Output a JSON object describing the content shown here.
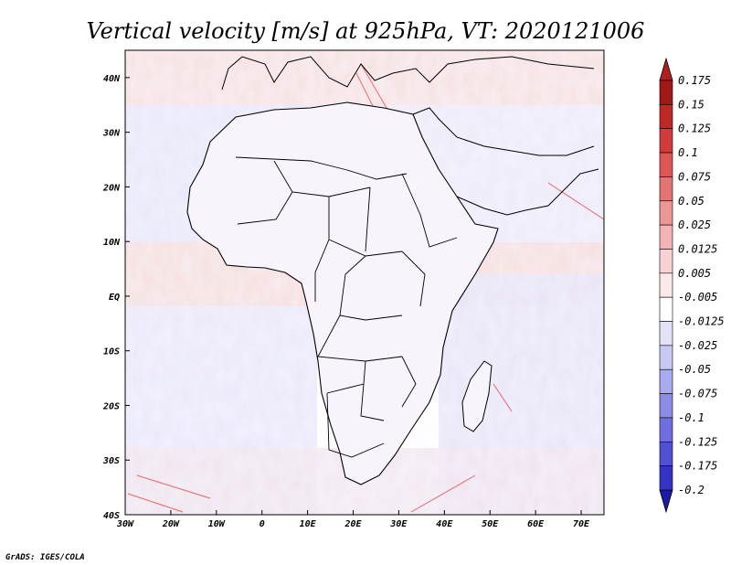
{
  "title": "Vertical velocity [m/s] at 925hPa, VT: 2020121006",
  "credit": "GrADS: IGES/COLA",
  "map": {
    "lon_range": [
      -30,
      75
    ],
    "lat_range": [
      -40,
      45
    ],
    "x_ticks": [
      {
        "value": -30,
        "label": "30W"
      },
      {
        "value": -20,
        "label": "20W"
      },
      {
        "value": -10,
        "label": "10W"
      },
      {
        "value": 0,
        "label": "0"
      },
      {
        "value": 10,
        "label": "10E"
      },
      {
        "value": 20,
        "label": "20E"
      },
      {
        "value": 30,
        "label": "30E"
      },
      {
        "value": 40,
        "label": "40E"
      },
      {
        "value": 50,
        "label": "50E"
      },
      {
        "value": 60,
        "label": "60E"
      },
      {
        "value": 70,
        "label": "70E"
      }
    ],
    "y_ticks": [
      {
        "value": 40,
        "label": "40N"
      },
      {
        "value": 30,
        "label": "30N"
      },
      {
        "value": 20,
        "label": "20N"
      },
      {
        "value": 10,
        "label": "10N"
      },
      {
        "value": 0,
        "label": "EQ"
      },
      {
        "value": -10,
        "label": "10S"
      },
      {
        "value": -20,
        "label": "20S"
      },
      {
        "value": -30,
        "label": "30S"
      },
      {
        "value": -40,
        "label": "40S"
      }
    ]
  },
  "colorbar": {
    "levels": [
      {
        "label": "0.175",
        "color": "#a01818"
      },
      {
        "label": "0.15",
        "color": "#c02828"
      },
      {
        "label": "0.125",
        "color": "#d03c3c"
      },
      {
        "label": "0.1",
        "color": "#dc5656"
      },
      {
        "label": "0.075",
        "color": "#e47474"
      },
      {
        "label": "0.05",
        "color": "#ec9696"
      },
      {
        "label": "0.025",
        "color": "#f2b4b4"
      },
      {
        "label": "0.0125",
        "color": "#f8d2d2"
      },
      {
        "label": "0.005",
        "color": "#fce8e8"
      },
      {
        "label": "-0.005",
        "color": "#ffffff"
      },
      {
        "label": "-0.0125",
        "color": "#e2e2fa"
      },
      {
        "label": "-0.025",
        "color": "#c8c8f4"
      },
      {
        "label": "-0.05",
        "color": "#aaaaee"
      },
      {
        "label": "-0.075",
        "color": "#8c8ce6"
      },
      {
        "label": "-0.1",
        "color": "#6e6ede"
      },
      {
        "label": "-0.125",
        "color": "#5050d2"
      },
      {
        "label": "-0.175",
        "color": "#3434c4"
      },
      {
        "label": "-0.2",
        "color": "#1e1eb0"
      }
    ],
    "top_color": "#b02020",
    "bottom_color": "#1a1aa8"
  }
}
